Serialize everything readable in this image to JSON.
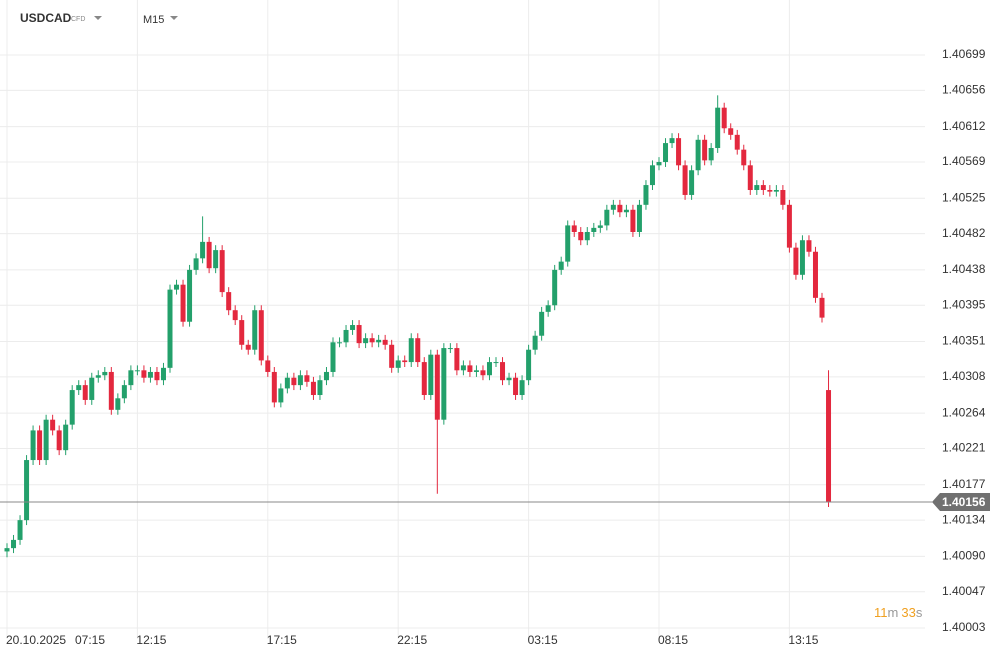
{
  "header": {
    "symbol": "USDCAD",
    "instrument_type": "CFD",
    "timeframe": "M15"
  },
  "countdown": {
    "minutes": 11,
    "minutes_unit": "m",
    "seconds": 33,
    "seconds_unit": "s"
  },
  "chart_data": {
    "type": "candlestick",
    "date_label": "20.10.2025",
    "categories": [
      "07:15",
      null,
      null,
      null,
      null,
      null,
      null,
      null,
      null,
      null,
      null,
      null,
      null,
      null,
      null,
      null,
      null,
      null,
      null,
      null,
      "12:15",
      null,
      null,
      null,
      null,
      null,
      null,
      null,
      null,
      null,
      null,
      null,
      null,
      null,
      null,
      null,
      null,
      null,
      null,
      null,
      "17:15",
      null,
      null,
      null,
      null,
      null,
      null,
      null,
      null,
      null,
      null,
      null,
      null,
      null,
      null,
      null,
      null,
      null,
      null,
      null,
      "22:15",
      null,
      null,
      null,
      null,
      null,
      null,
      null,
      null,
      null,
      null,
      null,
      null,
      null,
      null,
      null,
      null,
      null,
      null,
      null,
      "03:15",
      null,
      null,
      null,
      null,
      null,
      null,
      null,
      null,
      null,
      null,
      null,
      null,
      null,
      null,
      null,
      null,
      null,
      null,
      null,
      "08:15",
      null,
      null,
      null,
      null,
      null,
      null,
      null,
      null,
      null,
      null,
      null,
      null,
      null,
      null,
      null,
      null,
      null,
      null,
      null,
      "13:15",
      null,
      null,
      null,
      null,
      null,
      null
    ],
    "open": [
      1.40096,
      1.401,
      1.4011,
      1.40134,
      1.40207,
      1.40243,
      1.40207,
      1.40256,
      1.40243,
      1.40219,
      1.4025,
      1.40292,
      1.40298,
      1.4028,
      1.40307,
      1.4031,
      1.40314,
      1.40268,
      1.40282,
      1.40298,
      1.40316,
      1.40316,
      1.40307,
      1.40314,
      1.40304,
      1.40319,
      1.40414,
      1.4042,
      1.40375,
      1.40438,
      1.40452,
      1.40472,
      1.4044,
      1.40462,
      1.40411,
      1.40389,
      1.40377,
      1.40347,
      1.40341,
      1.40389,
      1.40328,
      1.40314,
      1.40277,
      1.40294,
      1.40307,
      1.40298,
      1.4031,
      1.40302,
      1.40286,
      1.40304,
      1.40314,
      1.4035,
      1.4035,
      1.40365,
      1.40371,
      1.40349,
      1.40355,
      1.4035,
      1.40353,
      1.40347,
      1.40319,
      1.40328,
      1.40326,
      1.40355,
      1.40326,
      1.40286,
      1.40335,
      1.40256,
      1.40343,
      1.40343,
      1.40316,
      1.40322,
      1.40314,
      1.40316,
      1.4031,
      1.40326,
      1.40326,
      1.40304,
      1.40307,
      1.40286,
      1.40304,
      1.40341,
      1.40358,
      1.40387,
      1.40395,
      1.40438,
      1.40448,
      1.40492,
      1.40484,
      1.40474,
      1.40484,
      1.40489,
      1.40492,
      1.40511,
      1.40517,
      1.40508,
      1.40511,
      1.40484,
      1.40517,
      1.40541,
      1.40565,
      1.40569,
      1.40592,
      1.40598,
      1.40565,
      1.40529,
      1.40559,
      1.40596,
      1.40571,
      1.40586,
      1.40635,
      1.4061,
      1.40602,
      1.40584,
      1.40565,
      1.40535,
      1.40541,
      1.40535,
      1.40533,
      1.40535,
      1.40517,
      1.40465,
      1.40432,
      1.40474,
      1.4046,
      1.40404,
      1.40292
    ],
    "high": [
      1.40106,
      1.40116,
      1.4014,
      1.40213,
      1.40249,
      1.40249,
      1.40262,
      1.40262,
      1.40249,
      1.40256,
      1.40298,
      1.40304,
      1.40304,
      1.40313,
      1.40316,
      1.4032,
      1.4032,
      1.40288,
      1.40304,
      1.40322,
      1.40322,
      1.40322,
      1.4032,
      1.4032,
      1.40325,
      1.4042,
      1.40426,
      1.40426,
      1.40444,
      1.40458,
      1.40503,
      1.40478,
      1.40468,
      1.40468,
      1.40417,
      1.40395,
      1.40383,
      1.40353,
      1.40395,
      1.40395,
      1.40334,
      1.4032,
      1.403,
      1.40313,
      1.40313,
      1.40316,
      1.40316,
      1.40308,
      1.4031,
      1.4032,
      1.40356,
      1.40356,
      1.40371,
      1.40377,
      1.40377,
      1.40361,
      1.40361,
      1.40359,
      1.40359,
      1.40353,
      1.40334,
      1.40334,
      1.40361,
      1.40361,
      1.40332,
      1.40341,
      1.40341,
      1.40349,
      1.40349,
      1.40349,
      1.40328,
      1.40328,
      1.40322,
      1.40322,
      1.40332,
      1.40332,
      1.40332,
      1.40313,
      1.40313,
      1.4031,
      1.40347,
      1.40364,
      1.40393,
      1.40401,
      1.40444,
      1.40454,
      1.40498,
      1.40498,
      1.4049,
      1.4049,
      1.40495,
      1.40498,
      1.40517,
      1.40523,
      1.40523,
      1.40517,
      1.40517,
      1.40523,
      1.40547,
      1.40571,
      1.40575,
      1.40598,
      1.40604,
      1.40604,
      1.40571,
      1.40565,
      1.40602,
      1.40602,
      1.40592,
      1.4065,
      1.40641,
      1.40616,
      1.40608,
      1.4059,
      1.40571,
      1.40547,
      1.40547,
      1.40541,
      1.40541,
      1.40541,
      1.40523,
      1.40471,
      1.4048,
      1.4048,
      1.40466,
      1.4041,
      1.40316
    ],
    "low": [
      1.40089,
      1.40094,
      1.40104,
      1.40128,
      1.40201,
      1.40201,
      1.40201,
      1.40237,
      1.40213,
      1.40213,
      1.40244,
      1.40286,
      1.40274,
      1.40274,
      1.40301,
      1.40304,
      1.40262,
      1.40262,
      1.40276,
      1.40292,
      1.4031,
      1.40301,
      1.40301,
      1.40298,
      1.40298,
      1.40313,
      1.40408,
      1.40369,
      1.40369,
      1.40432,
      1.40446,
      1.40434,
      1.40434,
      1.40405,
      1.40383,
      1.40371,
      1.40341,
      1.40335,
      1.40335,
      1.40322,
      1.40308,
      1.40271,
      1.40271,
      1.40288,
      1.40292,
      1.40292,
      1.40296,
      1.4028,
      1.4028,
      1.40298,
      1.40308,
      1.40344,
      1.40344,
      1.40359,
      1.40343,
      1.40343,
      1.40344,
      1.40344,
      1.40341,
      1.40313,
      1.40313,
      1.4032,
      1.4032,
      1.4032,
      1.4028,
      1.4028,
      1.40166,
      1.4025,
      1.40337,
      1.4031,
      1.4031,
      1.40308,
      1.40308,
      1.40304,
      1.40304,
      1.4032,
      1.40298,
      1.40298,
      1.4028,
      1.4028,
      1.40298,
      1.40335,
      1.40352,
      1.40381,
      1.40389,
      1.40432,
      1.40442,
      1.40478,
      1.40468,
      1.40468,
      1.40478,
      1.40483,
      1.40486,
      1.40505,
      1.40502,
      1.40502,
      1.40478,
      1.40478,
      1.40511,
      1.40535,
      1.40559,
      1.40563,
      1.40586,
      1.40559,
      1.40523,
      1.40523,
      1.40553,
      1.40565,
      1.40565,
      1.4058,
      1.40604,
      1.40596,
      1.40578,
      1.40559,
      1.40529,
      1.40529,
      1.40529,
      1.40527,
      1.40527,
      1.40511,
      1.40459,
      1.40426,
      1.40426,
      1.40454,
      1.40398,
      1.40374,
      1.4015
    ],
    "close": [
      1.401,
      1.4011,
      1.40134,
      1.40207,
      1.40243,
      1.40207,
      1.40256,
      1.40243,
      1.40219,
      1.4025,
      1.40292,
      1.40298,
      1.4028,
      1.40307,
      1.4031,
      1.40314,
      1.40268,
      1.40282,
      1.40298,
      1.40316,
      1.40316,
      1.40307,
      1.40314,
      1.40304,
      1.40319,
      1.40414,
      1.4042,
      1.40375,
      1.40438,
      1.40452,
      1.40472,
      1.4044,
      1.40462,
      1.40411,
      1.40389,
      1.40377,
      1.40347,
      1.40341,
      1.40389,
      1.40328,
      1.40314,
      1.40277,
      1.40294,
      1.40307,
      1.40298,
      1.4031,
      1.40302,
      1.40286,
      1.40304,
      1.40314,
      1.4035,
      1.4035,
      1.40365,
      1.40371,
      1.40349,
      1.40355,
      1.4035,
      1.40353,
      1.40347,
      1.40319,
      1.40328,
      1.40326,
      1.40355,
      1.40326,
      1.40286,
      1.40335,
      1.40256,
      1.40343,
      1.40343,
      1.40316,
      1.40322,
      1.40314,
      1.40316,
      1.4031,
      1.40326,
      1.40326,
      1.40304,
      1.40307,
      1.40286,
      1.40304,
      1.40341,
      1.40358,
      1.40387,
      1.40395,
      1.40438,
      1.40448,
      1.40492,
      1.40484,
      1.40474,
      1.40484,
      1.40489,
      1.40492,
      1.40511,
      1.40517,
      1.40508,
      1.40511,
      1.40484,
      1.40517,
      1.40541,
      1.40565,
      1.40569,
      1.40592,
      1.40598,
      1.40565,
      1.40529,
      1.40559,
      1.40596,
      1.40571,
      1.40586,
      1.40635,
      1.4061,
      1.40602,
      1.40584,
      1.40565,
      1.40535,
      1.40541,
      1.40535,
      1.40533,
      1.40535,
      1.40517,
      1.40465,
      1.40432,
      1.40474,
      1.4046,
      1.40404,
      1.4038,
      1.40156
    ],
    "up_color": "#23a06b",
    "down_color": "#e3283e",
    "current_price": 1.40156,
    "ylim": [
      1.3999,
      1.4075
    ],
    "yticks": [
      1.40699,
      1.40656,
      1.40612,
      1.40569,
      1.40525,
      1.40482,
      1.40438,
      1.40395,
      1.40351,
      1.40308,
      1.40264,
      1.40221,
      1.40177,
      1.40134,
      {
        "value": 1.4009,
        "label": "1.40090"
      },
      1.40047,
      1.40003
    ],
    "grid": true
  }
}
